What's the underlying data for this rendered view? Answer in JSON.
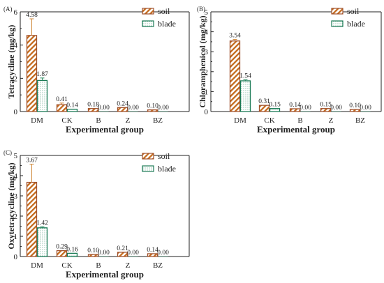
{
  "colors": {
    "soil_fill": "#ffffff",
    "soil_stroke": "#a0522d",
    "soil_hatch": "#c46a1c",
    "blade_fill": "#ffffff",
    "blade_stroke": "#1a7a55",
    "blade_dot": "#2a8a60",
    "errorbar_soil": "#d08a3c",
    "errorbar_blade": "#2a8a60",
    "axis": "#222222"
  },
  "icons": {
    "soil_legend": "diagonal-hatch-swatch",
    "blade_legend": "dotted-swatch"
  },
  "chart_data": [
    {
      "type": "bar",
      "panel_label": "(A)",
      "categories": [
        "DM",
        "CK",
        "B",
        "Z",
        "BZ"
      ],
      "series": [
        {
          "name": "soil",
          "values": [
            4.58,
            0.41,
            0.18,
            0.24,
            0.1
          ],
          "labels": [
            "4.58",
            "0.41",
            "0.18",
            "0.24",
            "0.10"
          ],
          "errors": [
            1.0,
            0.1,
            0,
            0,
            0
          ]
        },
        {
          "name": "blade",
          "values": [
            1.87,
            0.14,
            0.0,
            0.0,
            0.0
          ],
          "labels": [
            "1.87",
            "0.14",
            "0.00",
            "0.00",
            "0.00"
          ],
          "errors": [
            0.15,
            0,
            0,
            0,
            0
          ]
        }
      ],
      "xlabel": "Experimental group",
      "ylabel": "Tetracycline (mg/kg)",
      "ylim": [
        0,
        6
      ],
      "yticks": [
        "0",
        "2",
        "4",
        "6"
      ],
      "ytick_values": [
        0,
        2,
        4,
        6
      ],
      "grid": false,
      "legend_position": "top-right"
    },
    {
      "type": "bar",
      "panel_label": "(B)",
      "categories": [
        "DM",
        "CK",
        "B",
        "Z",
        "BZ"
      ],
      "series": [
        {
          "name": "soil",
          "values": [
            3.54,
            0.31,
            0.14,
            0.15,
            0.1
          ],
          "labels": [
            "3.54",
            "0.31",
            "0.14",
            "0.15",
            "0.10"
          ],
          "errors": [
            0.08,
            0,
            0,
            0,
            0
          ]
        },
        {
          "name": "blade",
          "values": [
            1.54,
            0.15,
            0.0,
            0.0,
            0.0
          ],
          "labels": [
            "1.54",
            "0.15",
            "0.00",
            "0.00",
            "0.00"
          ],
          "errors": [
            0.05,
            0,
            0,
            0,
            0
          ]
        }
      ],
      "xlabel": "Experimental group",
      "ylabel": "Chloramphenicol (mg/kg)",
      "ylim": [
        0,
        5
      ],
      "yticks": [
        "0",
        "1",
        "2",
        "3",
        "4",
        "5"
      ],
      "ytick_values": [
        0,
        1,
        2,
        3,
        4,
        5
      ],
      "grid": false,
      "legend_position": "top-right"
    },
    {
      "type": "bar",
      "panel_label": "(C)",
      "categories": [
        "DM",
        "CK",
        "B",
        "Z",
        "BZ"
      ],
      "series": [
        {
          "name": "soil",
          "values": [
            3.67,
            0.29,
            0.1,
            0.21,
            0.14
          ],
          "labels": [
            "3.67",
            "0.29",
            "0.10",
            "0.21",
            "0.14"
          ],
          "errors": [
            0.9,
            0,
            0,
            0,
            0
          ]
        },
        {
          "name": "blade",
          "values": [
            1.42,
            0.16,
            0.0,
            0.0,
            0.0
          ],
          "labels": [
            "1.42",
            "0.16",
            "0.00",
            "0.00",
            "0.00"
          ],
          "errors": [
            0.05,
            0,
            0,
            0,
            0
          ]
        }
      ],
      "xlabel": "Experimental group",
      "ylabel": "Oxytetracycline (mg/kg)",
      "ylim": [
        0,
        5
      ],
      "yticks": [
        "0",
        "1",
        "2",
        "3",
        "4",
        "5"
      ],
      "ytick_values": [
        0,
        1,
        2,
        3,
        4,
        5
      ],
      "grid": false,
      "legend_position": "top-right"
    }
  ]
}
